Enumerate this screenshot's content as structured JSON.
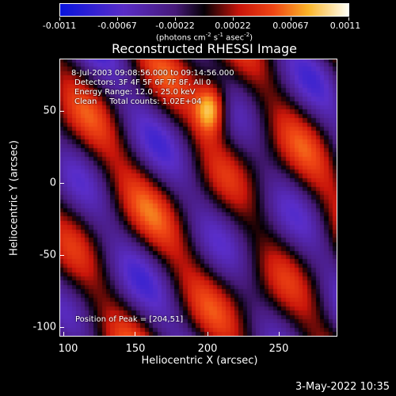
{
  "colorbar": {
    "tick_labels": [
      "-0.0011",
      "-0.00067",
      "-0.00022",
      "0.00022",
      "0.00067",
      "0.0011"
    ],
    "units_prefix": "(photons cm",
    "units_exp1": "-2",
    "units_mid": " s",
    "units_exp2": "-1",
    "units_mid2": " asec",
    "units_exp3": "-2",
    "units_suffix": ")"
  },
  "plot": {
    "title": "Reconstructed RHESSI Image",
    "xlabel": "Heliocentric X (arcsec)",
    "ylabel": "Heliocentric Y (arcsec)",
    "xlim": [
      100,
      290
    ],
    "ylim": [
      -105,
      85
    ],
    "xticks": [
      "100",
      "150",
      "200",
      "250"
    ],
    "yticks": [
      "50",
      "0",
      "-50",
      "-100"
    ],
    "annotations": {
      "time_range": "8-Jul-2003 09:08:56.000 to 09:14:56.000",
      "detectors": "Detectors: 3F 4F 5F 6F 7F 8F, All 0",
      "energy": "Energy Range: 12.0 - 25.0 keV",
      "clean": "Clean     Total counts: 1.02E+04",
      "peak": "Position of Peak = [204,51]"
    }
  },
  "footer": {
    "date": "3-May-2022 10:35"
  }
}
